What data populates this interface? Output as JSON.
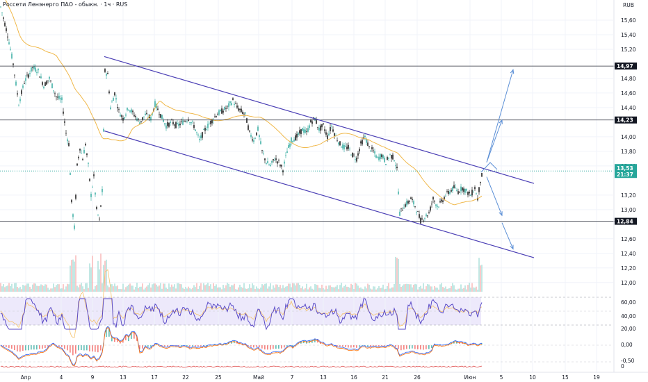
{
  "header": {
    "title": "Россети Ленэнерго ПАО - обыкн. · 1ч · RUS",
    "currency": "RUB"
  },
  "colors": {
    "up": "#26a69a",
    "down": "#000000",
    "channel": "#4b3fb5",
    "ma": "#f0b84a",
    "arrow": "#5b8fd6",
    "price_tag": "#26a69a",
    "level_tag": "#131722",
    "rsi_bg": "#ede9fb"
  },
  "chart_data": {
    "type": "candlestick",
    "title": "Россети Ленэнерго ПАО - обыкн. · 1ч · RUS",
    "x_tick_labels": [
      "Апр",
      "4",
      "9",
      "13",
      "17",
      "22",
      "25",
      "Май",
      "7",
      "13",
      "16",
      "21",
      "26",
      "Июн",
      "5",
      "10",
      "15",
      "19"
    ],
    "y_tick_labels": [
      "15,60",
      "15,40",
      "15,20",
      "14,80",
      "14,60",
      "14,40",
      "14,00",
      "13,80",
      "13,60",
      "13,20",
      "13,00",
      "12,60",
      "12,40",
      "12,20",
      "12,00"
    ],
    "ylim": [
      11.95,
      15.8
    ],
    "levels": [
      {
        "label": "14,97",
        "value": 14.97
      },
      {
        "label": "14,23",
        "value": 14.23
      },
      {
        "label": "12,84",
        "value": 12.84
      }
    ],
    "last_price": {
      "price": "13,53",
      "countdown": "21:37",
      "value": 13.53
    },
    "channel": {
      "upper": [
        {
          "date": "10 Апр",
          "price": 15.1
        },
        {
          "date": "6 Июн",
          "price": 13.36
        }
      ],
      "lower": [
        {
          "date": "10 Апр",
          "price": 14.08
        },
        {
          "date": "6 Июн",
          "price": 12.34
        }
      ]
    },
    "projection_arrows": [
      {
        "from": {
          "date": "2 Июн",
          "price": 13.65
        },
        "to": {
          "date": "3 Июн",
          "price": 14.23
        }
      },
      {
        "from": {
          "date": "2 Июн",
          "price": 13.65
        },
        "to": {
          "date": "4 Июн",
          "price": 14.92
        }
      },
      {
        "from": {
          "date": "2 Июн",
          "price": 13.45
        },
        "to": {
          "date": "3 Июн",
          "price": 12.92
        }
      },
      {
        "from": {
          "date": "3 Июн",
          "price": 12.82
        },
        "to": {
          "date": "4 Июн",
          "price": 12.46
        }
      }
    ],
    "price_path": [
      [
        0,
        15.78
      ],
      [
        10,
        15.4
      ],
      [
        18,
        15.0
      ],
      [
        26,
        14.45
      ],
      [
        34,
        14.75
      ],
      [
        46,
        14.95
      ],
      [
        54,
        14.9
      ],
      [
        62,
        14.7
      ],
      [
        70,
        14.8
      ],
      [
        80,
        14.55
      ],
      [
        88,
        14.5
      ],
      [
        94,
        14.05
      ],
      [
        98,
        13.9
      ],
      [
        102,
        13.1
      ],
      [
        106,
        12.75
      ],
      [
        110,
        13.6
      ],
      [
        114,
        13.85
      ],
      [
        118,
        13.7
      ],
      [
        122,
        13.9
      ],
      [
        126,
        13.6
      ],
      [
        130,
        13.2
      ],
      [
        134,
        13.45
      ],
      [
        138,
        13.0
      ],
      [
        142,
        12.85
      ],
      [
        146,
        13.25
      ],
      [
        150,
        14.9
      ],
      [
        154,
        14.85
      ],
      [
        158,
        14.4
      ],
      [
        164,
        14.6
      ],
      [
        170,
        14.35
      ],
      [
        176,
        14.25
      ],
      [
        184,
        14.4
      ],
      [
        192,
        14.3
      ],
      [
        200,
        14.2
      ],
      [
        208,
        14.3
      ],
      [
        216,
        14.25
      ],
      [
        222,
        14.45
      ],
      [
        230,
        14.3
      ],
      [
        238,
        14.15
      ],
      [
        246,
        14.2
      ],
      [
        254,
        14.15
      ],
      [
        262,
        14.2
      ],
      [
        270,
        14.25
      ],
      [
        278,
        14.15
      ],
      [
        286,
        13.95
      ],
      [
        294,
        14.1
      ],
      [
        302,
        14.2
      ],
      [
        310,
        14.3
      ],
      [
        318,
        14.35
      ],
      [
        326,
        14.4
      ],
      [
        334,
        14.5
      ],
      [
        340,
        14.4
      ],
      [
        346,
        14.35
      ],
      [
        352,
        14.3
      ],
      [
        358,
        14.05
      ],
      [
        364,
        13.95
      ],
      [
        370,
        14.1
      ],
      [
        376,
        13.8
      ],
      [
        382,
        13.65
      ],
      [
        388,
        13.6
      ],
      [
        394,
        13.7
      ],
      [
        400,
        13.65
      ],
      [
        406,
        13.55
      ],
      [
        412,
        13.8
      ],
      [
        418,
        13.95
      ],
      [
        426,
        14.0
      ],
      [
        434,
        14.1
      ],
      [
        440,
        14.05
      ],
      [
        446,
        14.2
      ],
      [
        452,
        14.25
      ],
      [
        458,
        14.1
      ],
      [
        464,
        14.15
      ],
      [
        470,
        14.0
      ],
      [
        476,
        14.15
      ],
      [
        482,
        14.0
      ],
      [
        488,
        13.9
      ],
      [
        494,
        13.85
      ],
      [
        500,
        13.85
      ],
      [
        506,
        13.75
      ],
      [
        512,
        13.7
      ],
      [
        518,
        13.9
      ],
      [
        524,
        14.0
      ],
      [
        530,
        13.85
      ],
      [
        536,
        13.8
      ],
      [
        542,
        13.7
      ],
      [
        548,
        13.75
      ],
      [
        554,
        13.65
      ],
      [
        560,
        13.75
      ],
      [
        566,
        13.7
      ],
      [
        570,
        13.55
      ],
      [
        574,
        12.95
      ],
      [
        580,
        13.05
      ],
      [
        586,
        13.1
      ],
      [
        590,
        13.15
      ],
      [
        596,
        13.05
      ],
      [
        600,
        12.95
      ],
      [
        604,
        12.85
      ],
      [
        610,
        12.9
      ],
      [
        616,
        12.95
      ],
      [
        622,
        13.15
      ],
      [
        628,
        13.05
      ],
      [
        634,
        13.1
      ],
      [
        640,
        13.2
      ],
      [
        646,
        13.25
      ],
      [
        652,
        13.3
      ],
      [
        658,
        13.25
      ],
      [
        664,
        13.3
      ],
      [
        670,
        13.25
      ],
      [
        676,
        13.2
      ],
      [
        682,
        13.3
      ],
      [
        686,
        13.15
      ],
      [
        690,
        13.4
      ],
      [
        694,
        13.53
      ]
    ]
  }
}
